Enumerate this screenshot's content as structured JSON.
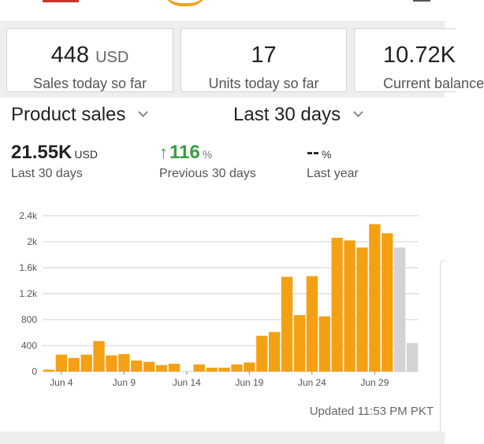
{
  "cards": [
    {
      "value": "448",
      "unit": "USD",
      "label": "Sales today so far"
    },
    {
      "value": "17",
      "unit": "",
      "label": "Units today so far"
    },
    {
      "value": "10.72K",
      "unit": "",
      "label": "Current balance"
    }
  ],
  "controls": {
    "metric": "Product sales",
    "range": "Last 30 days"
  },
  "stats": {
    "total": {
      "value": "21.55K",
      "unit": "USD",
      "label": "Last 30 days"
    },
    "change": {
      "arrow": "↑",
      "value": "116",
      "unit": "%",
      "label": "Previous 30 days"
    },
    "yoy": {
      "value": "--",
      "unit": "%",
      "label": "Last year"
    }
  },
  "colors": {
    "bar": "#f4a014",
    "projected": "#d3d3d3",
    "positive": "#3a9d41"
  },
  "chart_data": {
    "type": "bar",
    "categories": [
      "Jun 3",
      "Jun 4",
      "Jun 5",
      "Jun 6",
      "Jun 7",
      "Jun 8",
      "Jun 9",
      "Jun 10",
      "Jun 11",
      "Jun 12",
      "Jun 13",
      "Jun 14",
      "Jun 15",
      "Jun 16",
      "Jun 17",
      "Jun 18",
      "Jun 19",
      "Jun 20",
      "Jun 21",
      "Jun 22",
      "Jun 23",
      "Jun 24",
      "Jun 25",
      "Jun 26",
      "Jun 27",
      "Jun 28",
      "Jun 29",
      "Jun 30",
      "Jul 1",
      "Jul 2"
    ],
    "values": [
      30,
      260,
      210,
      260,
      470,
      250,
      270,
      170,
      150,
      100,
      120,
      0,
      110,
      60,
      60,
      110,
      140,
      550,
      610,
      1460,
      870,
      1470,
      850,
      2060,
      2020,
      1910,
      2270,
      2130,
      1910,
      440
    ],
    "projected": [
      false,
      false,
      false,
      false,
      false,
      false,
      false,
      false,
      false,
      false,
      false,
      false,
      false,
      false,
      false,
      false,
      false,
      false,
      false,
      false,
      false,
      false,
      false,
      false,
      false,
      false,
      false,
      false,
      true,
      true
    ],
    "ylim": [
      0,
      2400
    ],
    "yticks": [
      0,
      400,
      800,
      1200,
      1600,
      2000,
      2400
    ],
    "ytick_labels": [
      "0",
      "400",
      "800",
      "1.2k",
      "1.6k",
      "2k",
      "2.4k"
    ],
    "xtick_labels": [
      {
        "index": 1,
        "label": "Jun 4"
      },
      {
        "index": 6,
        "label": "Jun 9"
      },
      {
        "index": 11,
        "label": "Jun 14"
      },
      {
        "index": 16,
        "label": "Jun 19"
      },
      {
        "index": 21,
        "label": "Jun 24"
      },
      {
        "index": 26,
        "label": "Jun 29"
      }
    ],
    "grid": true,
    "title": "",
    "xlabel": "",
    "ylabel": ""
  },
  "footer": {
    "updated": "Updated 11:53 PM PKT"
  }
}
